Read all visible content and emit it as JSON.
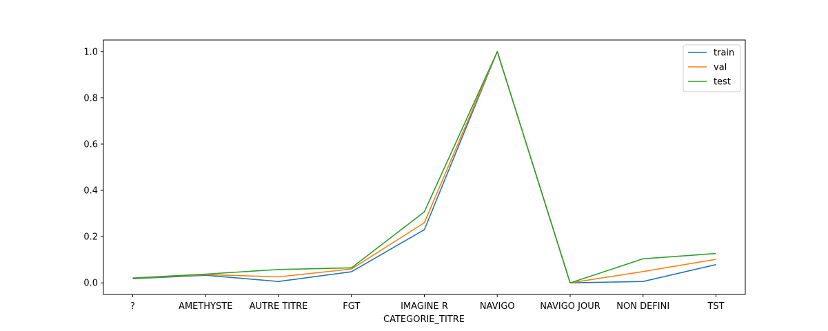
{
  "chart_data": {
    "type": "line",
    "categories": [
      "?",
      "AMETHYSTE",
      "AUTRE TITRE",
      "FGT",
      "IMAGINE R",
      "NAVIGO",
      "NAVIGO JOUR",
      "NON DEFINI",
      "TST"
    ],
    "series": [
      {
        "name": "train",
        "color": "#1f77b4",
        "values": [
          0.018,
          0.033,
          0.006,
          0.048,
          0.23,
          1.0,
          0.0,
          0.006,
          0.079
        ]
      },
      {
        "name": "val",
        "color": "#ff7f0e",
        "values": [
          0.02,
          0.036,
          0.026,
          0.06,
          0.26,
          1.0,
          0.0,
          0.049,
          0.102
        ]
      },
      {
        "name": "test",
        "color": "#2ca02c",
        "values": [
          0.021,
          0.038,
          0.058,
          0.065,
          0.307,
          1.0,
          0.0,
          0.104,
          0.127
        ]
      }
    ],
    "xlabel": "CATEGORIE_TITRE",
    "ylabel": "",
    "yticks": [
      "0.0",
      "0.2",
      "0.4",
      "0.6",
      "0.8",
      "1.0"
    ],
    "ylim": [
      -0.05,
      1.05
    ],
    "grid": false,
    "legend_position": "top-right"
  }
}
